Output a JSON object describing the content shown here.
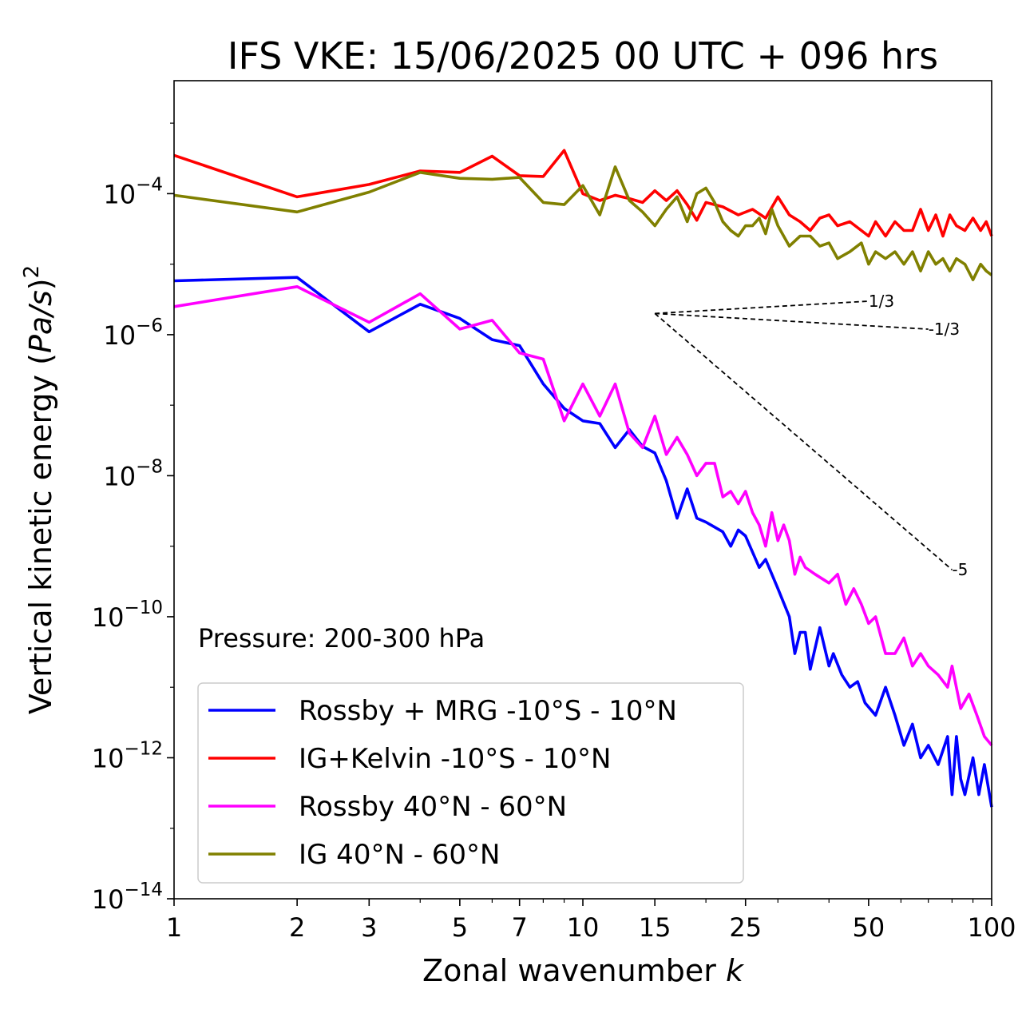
{
  "chart_data": {
    "type": "line",
    "title": "IFS VKE: 15/06/2025 00 UTC + 096 hrs",
    "xlabel": "Zonal wavenumber k",
    "ylabel": "Vertical kinetic energy (Pa/s)²",
    "xscale": "log",
    "yscale": "log",
    "xlim": [
      1,
      100
    ],
    "ylim": [
      1e-14,
      0.004
    ],
    "x_ticks": [
      1,
      2,
      3,
      5,
      7,
      10,
      15,
      25,
      50,
      100
    ],
    "y_ticks": [
      {
        "value": 0.0001,
        "base": "10",
        "exp": "−4"
      },
      {
        "value": 1e-06,
        "base": "10",
        "exp": "−6"
      },
      {
        "value": 1e-08,
        "base": "10",
        "exp": "−8"
      },
      {
        "value": 1e-10,
        "base": "10",
        "exp": "−10"
      },
      {
        "value": 1e-12,
        "base": "10",
        "exp": "−12"
      },
      {
        "value": 1e-14,
        "base": "10",
        "exp": "−14"
      }
    ],
    "annotation": "Pressure: 200-300 hPa",
    "legend_position": "lower-left",
    "series": [
      {
        "name": "Rossby + MRG -10°S - 10°N",
        "color": "#0000ff",
        "points": [
          [
            1,
            5.8e-06
          ],
          [
            2,
            6.5e-06
          ],
          [
            3,
            1.1e-06
          ],
          [
            4,
            2.7e-06
          ],
          [
            5,
            1.7e-06
          ],
          [
            6,
            8.5e-07
          ],
          [
            7,
            7e-07
          ],
          [
            8,
            2e-07
          ],
          [
            9,
            9e-08
          ],
          [
            10,
            6e-08
          ],
          [
            11,
            5.5e-08
          ],
          [
            12,
            2.5e-08
          ],
          [
            13,
            4.5e-08
          ],
          [
            14,
            2.6e-08
          ],
          [
            15,
            2.1e-08
          ],
          [
            16,
            8.5e-09
          ],
          [
            17,
            2.5e-09
          ],
          [
            18,
            6.5e-09
          ],
          [
            19,
            2.5e-09
          ],
          [
            20,
            2.2e-09
          ],
          [
            22,
            1.6e-09
          ],
          [
            23,
            1e-09
          ],
          [
            24,
            1.7e-09
          ],
          [
            25,
            1.4e-09
          ],
          [
            27,
            5e-10
          ],
          [
            28,
            6.5e-10
          ],
          [
            30,
            2.5e-10
          ],
          [
            32,
            1e-10
          ],
          [
            33,
            3e-11
          ],
          [
            34,
            6e-11
          ],
          [
            35,
            6e-11
          ],
          [
            36,
            1.8e-11
          ],
          [
            38,
            7e-11
          ],
          [
            40,
            2e-11
          ],
          [
            41,
            3e-11
          ],
          [
            43,
            1.5e-11
          ],
          [
            45,
            1e-11
          ],
          [
            47,
            1.2e-11
          ],
          [
            49,
            6e-12
          ],
          [
            52,
            4e-12
          ],
          [
            55,
            1e-11
          ],
          [
            58,
            4e-12
          ],
          [
            61,
            1.5e-12
          ],
          [
            64,
            3e-12
          ],
          [
            67,
            1e-12
          ],
          [
            70,
            1.5e-12
          ],
          [
            74,
            8e-13
          ],
          [
            78,
            2e-12
          ],
          [
            80,
            3e-13
          ],
          [
            82,
            2e-12
          ],
          [
            84,
            5e-13
          ],
          [
            86,
            3e-13
          ],
          [
            90,
            1e-12
          ],
          [
            93,
            3e-13
          ],
          [
            96,
            8e-13
          ],
          [
            100,
            2e-13
          ]
        ]
      },
      {
        "name": "IG+Kelvin -10°S - 10°N",
        "color": "#ff0000",
        "points": [
          [
            1,
            0.00035
          ],
          [
            2,
            9e-05
          ],
          [
            3,
            0.000135
          ],
          [
            4,
            0.00021
          ],
          [
            5,
            0.0002
          ],
          [
            6,
            0.00034
          ],
          [
            7,
            0.00018
          ],
          [
            8,
            0.000175
          ],
          [
            9,
            0.00041
          ],
          [
            10,
            0.0001
          ],
          [
            11,
            8e-05
          ],
          [
            12,
            9.5e-05
          ],
          [
            13,
            8.5e-05
          ],
          [
            14,
            7.5e-05
          ],
          [
            15,
            0.00011
          ],
          [
            16,
            8e-05
          ],
          [
            17,
            0.00011
          ],
          [
            18,
            7e-05
          ],
          [
            19,
            4.2e-05
          ],
          [
            20,
            7.5e-05
          ],
          [
            22,
            6.5e-05
          ],
          [
            24,
            5e-05
          ],
          [
            26,
            6e-05
          ],
          [
            28,
            4.5e-05
          ],
          [
            30,
            9e-05
          ],
          [
            32,
            5e-05
          ],
          [
            34,
            4e-05
          ],
          [
            36,
            3e-05
          ],
          [
            38,
            4.5e-05
          ],
          [
            40,
            5e-05
          ],
          [
            42,
            3.5e-05
          ],
          [
            45,
            4e-05
          ],
          [
            48,
            3e-05
          ],
          [
            50,
            2.5e-05
          ],
          [
            52,
            4e-05
          ],
          [
            55,
            2.5e-05
          ],
          [
            58,
            4e-05
          ],
          [
            61,
            3e-05
          ],
          [
            64,
            3e-05
          ],
          [
            67,
            6e-05
          ],
          [
            70,
            3e-05
          ],
          [
            73,
            5e-05
          ],
          [
            76,
            2.5e-05
          ],
          [
            79,
            5e-05
          ],
          [
            82,
            3.5e-05
          ],
          [
            86,
            3e-05
          ],
          [
            90,
            4.5e-05
          ],
          [
            94,
            3e-05
          ],
          [
            97,
            4e-05
          ],
          [
            100,
            2.5e-05
          ]
        ]
      },
      {
        "name": "Rossby 40°N - 60°N",
        "color": "#ff00ff",
        "points": [
          [
            1,
            2.5e-06
          ],
          [
            2,
            4.8e-06
          ],
          [
            3,
            1.5e-06
          ],
          [
            4,
            3.8e-06
          ],
          [
            5,
            1.2e-06
          ],
          [
            6,
            1.6e-06
          ],
          [
            7,
            5.5e-07
          ],
          [
            8,
            4.5e-07
          ],
          [
            9,
            6e-08
          ],
          [
            10,
            2e-07
          ],
          [
            11,
            7e-08
          ],
          [
            12,
            2e-07
          ],
          [
            13,
            4e-08
          ],
          [
            14,
            2.5e-08
          ],
          [
            15,
            7e-08
          ],
          [
            16,
            2e-08
          ],
          [
            17,
            3.5e-08
          ],
          [
            18,
            2e-08
          ],
          [
            19,
            1e-08
          ],
          [
            20,
            1.5e-08
          ],
          [
            21,
            1.5e-08
          ],
          [
            22,
            5e-09
          ],
          [
            23,
            6e-09
          ],
          [
            24,
            4e-09
          ],
          [
            25,
            6e-09
          ],
          [
            26,
            3e-09
          ],
          [
            27,
            2e-09
          ],
          [
            28,
            1e-09
          ],
          [
            29,
            3e-09
          ],
          [
            30,
            1.2e-09
          ],
          [
            31,
            2e-09
          ],
          [
            32,
            1.2e-09
          ],
          [
            33,
            4e-10
          ],
          [
            34,
            7e-10
          ],
          [
            35,
            5e-10
          ],
          [
            37,
            4e-10
          ],
          [
            40,
            3e-10
          ],
          [
            42,
            4e-10
          ],
          [
            44,
            1.5e-10
          ],
          [
            46,
            2.5e-10
          ],
          [
            48,
            1.5e-10
          ],
          [
            50,
            8e-11
          ],
          [
            52,
            1e-10
          ],
          [
            55,
            3e-11
          ],
          [
            58,
            3e-11
          ],
          [
            61,
            5e-11
          ],
          [
            64,
            2e-11
          ],
          [
            67,
            3e-11
          ],
          [
            70,
            2e-11
          ],
          [
            74,
            1.5e-11
          ],
          [
            78,
            1e-11
          ],
          [
            80,
            2e-11
          ],
          [
            84,
            5e-12
          ],
          [
            88,
            8e-12
          ],
          [
            92,
            4e-12
          ],
          [
            96,
            2e-12
          ],
          [
            100,
            1.5e-12
          ]
        ]
      },
      {
        "name": "IG 40°N - 60°N",
        "color": "#808000",
        "points": [
          [
            1,
            9.5e-05
          ],
          [
            2,
            5.5e-05
          ],
          [
            3,
            0.000105
          ],
          [
            4,
            0.0002
          ],
          [
            5,
            0.000165
          ],
          [
            6,
            0.00016
          ],
          [
            7,
            0.00017
          ],
          [
            8,
            7.5e-05
          ],
          [
            9,
            7e-05
          ],
          [
            10,
            0.00013
          ],
          [
            11,
            5e-05
          ],
          [
            12,
            0.00024
          ],
          [
            13,
            8e-05
          ],
          [
            14,
            5.5e-05
          ],
          [
            15,
            3.5e-05
          ],
          [
            16,
            6e-05
          ],
          [
            17,
            9e-05
          ],
          [
            18,
            4e-05
          ],
          [
            19,
            0.0001
          ],
          [
            20,
            0.00012
          ],
          [
            21,
            7.5e-05
          ],
          [
            22,
            4e-05
          ],
          [
            23,
            3e-05
          ],
          [
            24,
            2.5e-05
          ],
          [
            25,
            3.5e-05
          ],
          [
            26,
            3.5e-05
          ],
          [
            27,
            4.5e-05
          ],
          [
            28,
            2.7e-05
          ],
          [
            29,
            6e-05
          ],
          [
            30,
            3.5e-05
          ],
          [
            32,
            1.8e-05
          ],
          [
            34,
            2.5e-05
          ],
          [
            36,
            2.5e-05
          ],
          [
            38,
            1.8e-05
          ],
          [
            40,
            2e-05
          ],
          [
            42,
            1.2e-05
          ],
          [
            45,
            1.5e-05
          ],
          [
            48,
            2e-05
          ],
          [
            50,
            1e-05
          ],
          [
            52,
            1.5e-05
          ],
          [
            55,
            1.2e-05
          ],
          [
            58,
            1.5e-05
          ],
          [
            61,
            1e-05
          ],
          [
            64,
            1.5e-05
          ],
          [
            67,
            8e-06
          ],
          [
            70,
            1.5e-05
          ],
          [
            73,
            1e-05
          ],
          [
            76,
            1.2e-05
          ],
          [
            79,
            8e-06
          ],
          [
            82,
            1.2e-05
          ],
          [
            86,
            1e-05
          ],
          [
            90,
            6e-06
          ],
          [
            94,
            1e-05
          ],
          [
            97,
            8e-06
          ],
          [
            100,
            7e-06
          ]
        ]
      }
    ],
    "reference_slopes": [
      {
        "label": "1/3",
        "slope": 0.3333,
        "x_start": 15,
        "y_start": 2e-06,
        "x_end": 50
      },
      {
        "label": "-1/3",
        "slope": -0.3333,
        "x_start": 15,
        "y_start": 2e-06,
        "x_end": 70
      },
      {
        "label": "-5",
        "slope": -5,
        "x_start": 15,
        "y_start": 2e-06,
        "x_end": 80
      }
    ]
  }
}
